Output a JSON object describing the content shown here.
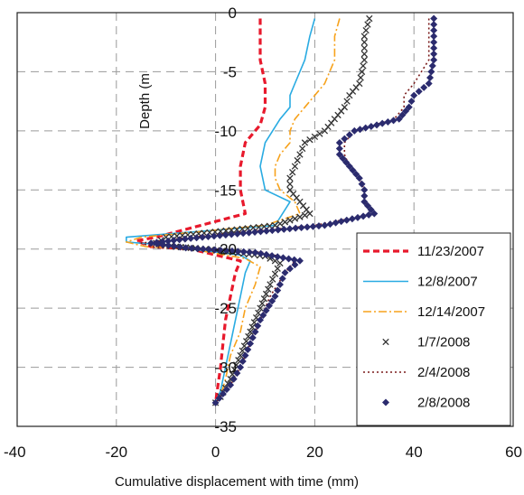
{
  "chart_data": {
    "type": "line",
    "title": "",
    "xlabel": "Cumulative displacement with time (mm)",
    "ylabel": "Depth (m",
    "xlim": [
      -40,
      60
    ],
    "ylim": [
      -35,
      0
    ],
    "x_ticks": [
      "-40",
      "-20",
      "0",
      "20",
      "40",
      "60"
    ],
    "y_ticks": [
      "0",
      "-5",
      "-10",
      "-15",
      "-20",
      "-25",
      "-30",
      "-35"
    ],
    "grid": true,
    "grid_style": "dashed",
    "legend_position": "bottom-right",
    "series": [
      {
        "name": "11/23/2007",
        "style": "dashed-thick",
        "color": "#e8192c",
        "points": [
          [
            9,
            -0.5
          ],
          [
            9,
            -2
          ],
          [
            9,
            -4
          ],
          [
            10,
            -6
          ],
          [
            10,
            -8
          ],
          [
            9,
            -9.5
          ],
          [
            6,
            -11
          ],
          [
            5,
            -13
          ],
          [
            5,
            -15
          ],
          [
            6,
            -17
          ],
          [
            -12,
            -19
          ],
          [
            -16,
            -19.3
          ],
          [
            -13,
            -19.8
          ],
          [
            -5,
            -20
          ],
          [
            5,
            -21
          ],
          [
            4,
            -22
          ],
          [
            3,
            -24
          ],
          [
            2,
            -26
          ],
          [
            1.5,
            -28
          ],
          [
            1,
            -30
          ],
          [
            0.5,
            -31.5
          ],
          [
            0,
            -33
          ]
        ]
      },
      {
        "name": "12/8/2007",
        "style": "solid",
        "color": "#29abe2",
        "points": [
          [
            20,
            -0.5
          ],
          [
            19,
            -2
          ],
          [
            18,
            -4
          ],
          [
            16,
            -6
          ],
          [
            15,
            -7
          ],
          [
            15,
            -8
          ],
          [
            13,
            -9
          ],
          [
            10,
            -11
          ],
          [
            9,
            -13
          ],
          [
            10,
            -15
          ],
          [
            15,
            -16
          ],
          [
            12,
            -18
          ],
          [
            -18,
            -19
          ],
          [
            -18,
            -19.4
          ],
          [
            -12,
            -19.6
          ],
          [
            -5,
            -20
          ],
          [
            5,
            -20.5
          ],
          [
            7,
            -21
          ],
          [
            6,
            -22
          ],
          [
            5,
            -24
          ],
          [
            4,
            -26
          ],
          [
            3,
            -28
          ],
          [
            2,
            -30
          ],
          [
            1,
            -32
          ],
          [
            0,
            -33
          ]
        ]
      },
      {
        "name": "12/14/2007",
        "style": "dash-dot",
        "color": "#f7a21b",
        "points": [
          [
            25,
            -0.5
          ],
          [
            24,
            -2
          ],
          [
            24,
            -4
          ],
          [
            22,
            -6
          ],
          [
            20,
            -7
          ],
          [
            18,
            -8
          ],
          [
            16,
            -9
          ],
          [
            15,
            -10
          ],
          [
            15,
            -11
          ],
          [
            13,
            -12
          ],
          [
            12,
            -13
          ],
          [
            12,
            -14
          ],
          [
            13,
            -15
          ],
          [
            16,
            -16
          ],
          [
            17,
            -17
          ],
          [
            10,
            -18
          ],
          [
            -15,
            -19
          ],
          [
            -18,
            -19.4
          ],
          [
            -14,
            -19.8
          ],
          [
            -5,
            -20
          ],
          [
            6,
            -20.8
          ],
          [
            9,
            -21.5
          ],
          [
            8,
            -23
          ],
          [
            6,
            -25
          ],
          [
            5,
            -27
          ],
          [
            3,
            -29
          ],
          [
            2,
            -31
          ],
          [
            1,
            -32.5
          ],
          [
            0,
            -33
          ]
        ]
      },
      {
        "name": "1/7/2008",
        "style": "x-marker",
        "color": "#333333",
        "points": [
          [
            31,
            -0.5
          ],
          [
            30,
            -2
          ],
          [
            30,
            -4
          ],
          [
            29,
            -6
          ],
          [
            27,
            -7
          ],
          [
            26,
            -8
          ],
          [
            24,
            -9
          ],
          [
            22,
            -10
          ],
          [
            18,
            -11
          ],
          [
            17,
            -12
          ],
          [
            16,
            -13
          ],
          [
            15,
            -14
          ],
          [
            15,
            -15
          ],
          [
            17,
            -16
          ],
          [
            19,
            -17
          ],
          [
            12,
            -18
          ],
          [
            -10,
            -19
          ],
          [
            -12,
            -19.5
          ],
          [
            -8,
            -19.8
          ],
          [
            -2,
            -20
          ],
          [
            10,
            -20.6
          ],
          [
            13,
            -21.2
          ],
          [
            11,
            -23
          ],
          [
            9,
            -25
          ],
          [
            7,
            -27
          ],
          [
            5,
            -29
          ],
          [
            3,
            -31
          ],
          [
            1,
            -32.5
          ],
          [
            0,
            -33
          ]
        ]
      },
      {
        "name": "2/4/2008",
        "style": "dotted",
        "color": "#7a1a1a",
        "points": [
          [
            43,
            -0.5
          ],
          [
            43,
            -2
          ],
          [
            43,
            -4
          ],
          [
            40,
            -6
          ],
          [
            38,
            -7
          ],
          [
            38,
            -8
          ],
          [
            36,
            -9
          ],
          [
            28,
            -10
          ],
          [
            26,
            -11
          ],
          [
            26,
            -12
          ],
          [
            27,
            -13
          ],
          [
            29,
            -14
          ],
          [
            30,
            -15
          ],
          [
            30,
            -16
          ],
          [
            32,
            -17
          ],
          [
            20,
            -18
          ],
          [
            -5,
            -19
          ],
          [
            -15,
            -19.5
          ],
          [
            -12,
            -19.9
          ],
          [
            0,
            -20
          ],
          [
            10,
            -20.3
          ],
          [
            16,
            -21
          ],
          [
            14,
            -22
          ],
          [
            11,
            -24
          ],
          [
            9,
            -26
          ],
          [
            7,
            -28
          ],
          [
            5,
            -30
          ],
          [
            3,
            -31.5
          ],
          [
            0,
            -33
          ]
        ]
      },
      {
        "name": "2/8/2008",
        "style": "diamond-marker",
        "color": "#2b2b6e",
        "points": [
          [
            44,
            -0.5
          ],
          [
            44,
            -2
          ],
          [
            44,
            -4
          ],
          [
            43,
            -6
          ],
          [
            40,
            -7
          ],
          [
            39,
            -8
          ],
          [
            37,
            -9
          ],
          [
            28,
            -10
          ],
          [
            25,
            -11
          ],
          [
            25,
            -12
          ],
          [
            27,
            -13
          ],
          [
            29,
            -14
          ],
          [
            30,
            -15
          ],
          [
            30,
            -16
          ],
          [
            32,
            -17
          ],
          [
            22,
            -18
          ],
          [
            -5,
            -19.1
          ],
          [
            -13,
            -19.5
          ],
          [
            -6,
            -19.9
          ],
          [
            8,
            -20.3
          ],
          [
            17,
            -21
          ],
          [
            14,
            -22
          ],
          [
            12,
            -24
          ],
          [
            9,
            -26
          ],
          [
            7,
            -28
          ],
          [
            5,
            -30
          ],
          [
            3,
            -31.5
          ],
          [
            0,
            -33
          ]
        ]
      }
    ]
  }
}
